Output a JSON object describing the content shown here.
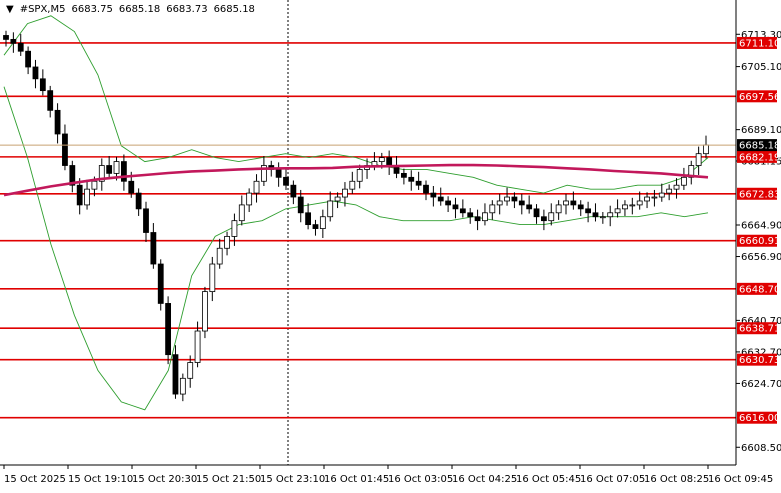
{
  "header": {
    "symbol": "#SPX,M5",
    "open": "6683.75",
    "high": "6685.18",
    "low": "6683.73",
    "close": "6685.18"
  },
  "colors": {
    "background": "#ffffff",
    "level_line": "#e00000",
    "ma_line": "#c2185b",
    "band_line": "#2e9e2e",
    "candle": "#000000",
    "current_price_line": "#c8a070"
  },
  "chart_data": {
    "type": "candlestick",
    "title": "",
    "xlabel": "",
    "ylabel": "",
    "ylim": [
      6604,
      6722
    ],
    "grid": false,
    "y_ticks": [
      6713.3,
      6705.1,
      6689.1,
      6681.15,
      6664.9,
      6656.9,
      6640.7,
      6632.7,
      6624.7,
      6608.5
    ],
    "x_tick_labels": [
      "15 Oct 2025",
      "15 Oct 19:10",
      "15 Oct 20:30",
      "15 Oct 21:50",
      "15 Oct 23:10",
      "16 Oct 01:45",
      "16 Oct 03:05",
      "16 Oct 04:25",
      "16 Oct 05:45",
      "16 Oct 07:05",
      "16 Oct 08:25",
      "16 Oct 09:45"
    ],
    "levels": [
      6711.1,
      6697.56,
      6682.19,
      6672.83,
      6660.91,
      6648.7,
      6638.71,
      6630.73,
      6616.0
    ],
    "current_price": 6685.18,
    "closes": [
      6712,
      6711,
      6709,
      6705,
      6702,
      6699,
      6694,
      6688,
      6680,
      6675,
      6670,
      6674,
      6676,
      6680,
      6678,
      6681,
      6676,
      6673,
      6669,
      6663,
      6655,
      6645,
      6632,
      6622,
      6626,
      6630,
      6638,
      6648,
      6655,
      6659,
      6662,
      6666,
      6670,
      6673,
      6676,
      6680,
      6679,
      6677,
      6675,
      6672,
      6668,
      6665,
      6664,
      6667,
      6671,
      6672,
      6674,
      6676,
      6679,
      6680,
      6681,
      6682,
      6680,
      6678,
      6677,
      6676,
      6675,
      6673,
      6672,
      6671,
      6670,
      6669,
      6668,
      6667,
      6666,
      6668,
      6670,
      6671,
      6672,
      6671,
      6670,
      6669,
      6667,
      6666,
      6668,
      6670,
      6671,
      6670,
      6669,
      6668,
      6667,
      6667,
      6668,
      6669,
      6670,
      6670,
      6671,
      6672,
      6672,
      6673,
      6674,
      6675,
      6677,
      6680,
      6683,
      6685.18
    ],
    "ma_line": [
      6672.5,
      6673.6,
      6674.7,
      6675.6,
      6676.5,
      6677.1,
      6677.6,
      6678.1,
      6678.5,
      6678.7,
      6679.0,
      6679.2,
      6679.3,
      6679.3,
      6679.4,
      6679.7,
      6679.8,
      6679.9,
      6680.0,
      6680.1,
      6680.1,
      6680.0,
      6679.8,
      6679.6,
      6679.3,
      6679.0,
      6678.6,
      6678.3,
      6678.0,
      6677.5,
      6677.0
    ],
    "upper_band": [
      6708,
      6716,
      6718,
      6714,
      6703,
      6685,
      6681,
      6682,
      6684,
      6682,
      6681,
      6682,
      6683,
      6682,
      6683,
      6682,
      6680,
      6679,
      6679,
      6678,
      6677,
      6675,
      6674,
      6673,
      6675,
      6674,
      6674,
      6675,
      6675,
      6677,
      6682
    ],
    "lower_band": [
      6700,
      6682,
      6660,
      6642,
      6628,
      6620,
      6618,
      6628,
      6652,
      6662,
      6665,
      6666,
      6669,
      6670,
      6671,
      6670,
      6667,
      6666,
      6666,
      6666,
      6667,
      6666,
      6665,
      6665,
      6666,
      6667,
      6667,
      6667,
      6668,
      6667,
      6668
    ]
  }
}
